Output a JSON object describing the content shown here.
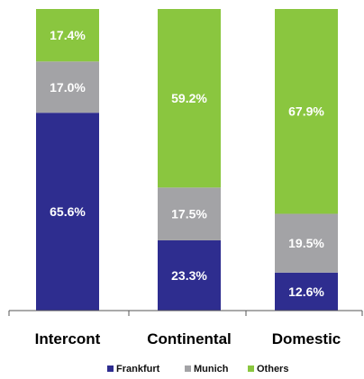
{
  "chart_data": {
    "type": "bar",
    "stacked": true,
    "title": "",
    "xlabel": "",
    "ylabel": "",
    "ylim": [
      0,
      100
    ],
    "grid": false,
    "legend_position": "bottom",
    "categories": [
      "Intercont",
      "Continental",
      "Domestic"
    ],
    "series": [
      {
        "name": "Frankfurt",
        "color": "#2e2d8f",
        "values": [
          65.6,
          23.3,
          12.6
        ],
        "labels": [
          "65.6%",
          "23.3%",
          "12.6%"
        ]
      },
      {
        "name": "Munich",
        "color": "#a3a3a6",
        "values": [
          17.0,
          17.5,
          19.5
        ],
        "labels": [
          "17.0%",
          "17.5%",
          "19.5%"
        ]
      },
      {
        "name": "Others",
        "color": "#8ac63f",
        "values": [
          17.4,
          59.2,
          67.9
        ],
        "labels": [
          "17.4%",
          "59.2%",
          "67.9%"
        ]
      }
    ]
  }
}
